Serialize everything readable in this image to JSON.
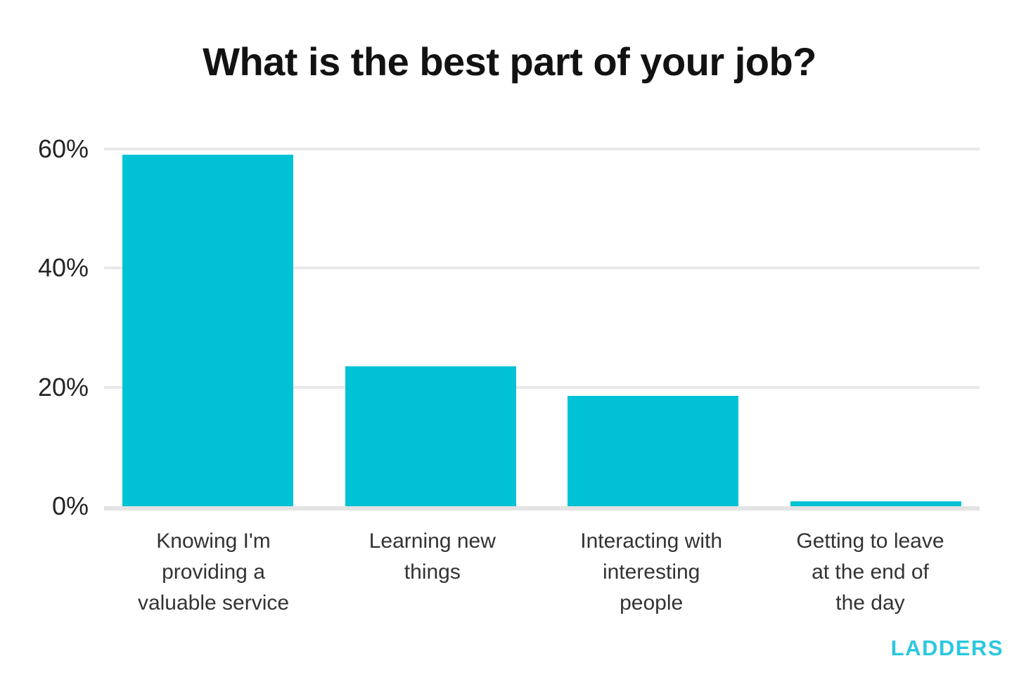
{
  "chart_data": {
    "type": "bar",
    "title": "What is the best part of your job?",
    "categories": [
      "Knowing I'm providing a valuable service",
      "Learning new things",
      "Interacting with interesting people",
      "Getting to leave at the end of the day"
    ],
    "label_lines": [
      [
        "Knowing I'm",
        "providing a",
        "valuable service"
      ],
      [
        "Learning new",
        "things"
      ],
      [
        "Interacting with",
        "interesting",
        "people"
      ],
      [
        "Getting to leave",
        "at the end of",
        "the day"
      ]
    ],
    "values": [
      59,
      23.5,
      18.5,
      0.8
    ],
    "xlabel": "",
    "ylabel": "",
    "ylim": [
      0,
      60
    ],
    "yticks": [
      0,
      20,
      40,
      60
    ],
    "ytick_labels": [
      "0%",
      "20%",
      "40%",
      "60%"
    ],
    "grid": "horizontal",
    "legend": "none",
    "bar_color": "#00c2d5"
  },
  "branding": {
    "logo_text": "LADDERS",
    "logo_color": "#2bc8df"
  },
  "colors": {
    "background": "#ffffff",
    "gridline": "#e9e9e9",
    "axis_line": "#e3e3e3",
    "title_text": "#121212",
    "tick_text": "#242424",
    "label_text": "#333333"
  }
}
